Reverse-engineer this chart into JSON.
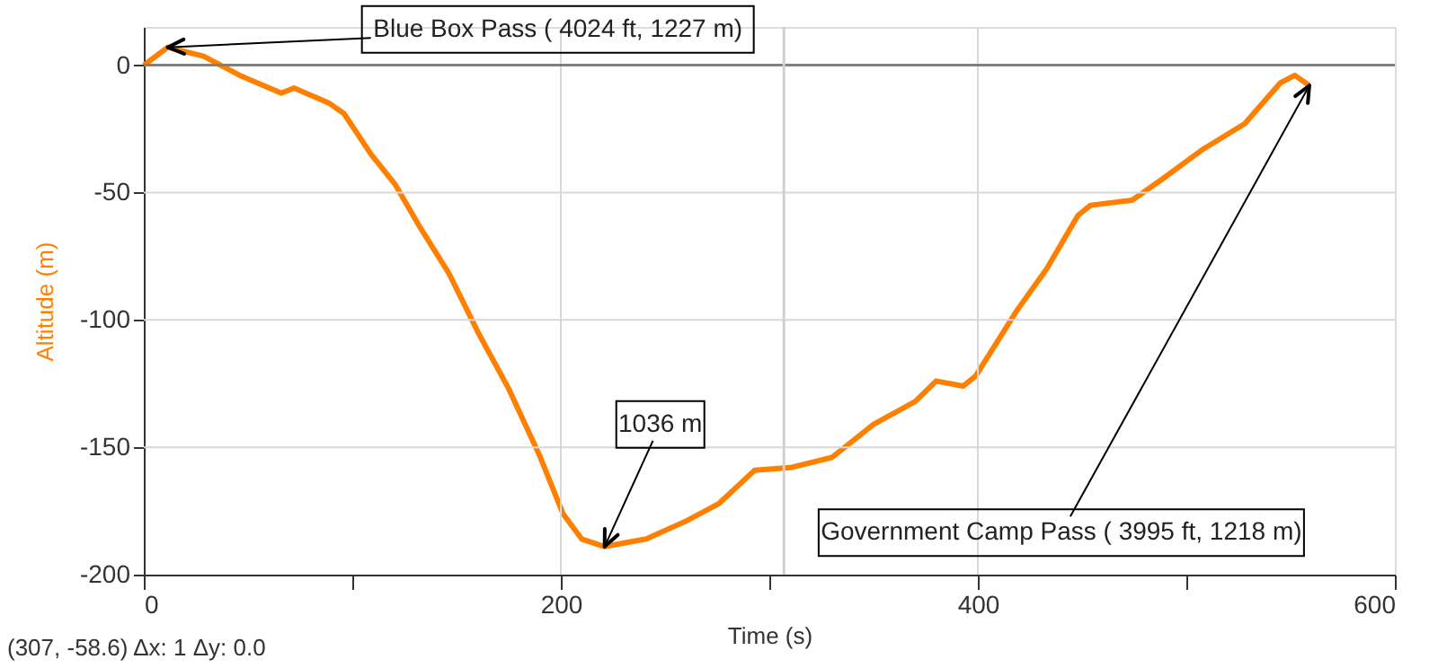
{
  "chart_data": {
    "type": "line",
    "xlabel": "Time (s)",
    "ylabel": "Altitude (m)",
    "x": [
      0,
      11.5,
      28.7,
      46,
      66,
      72,
      89,
      96,
      109,
      120.7,
      132,
      146.5,
      161,
      175,
      189.7,
      201,
      210,
      221,
      241,
      260,
      276,
      293,
      310,
      330,
      350,
      370,
      380,
      393,
      399,
      419,
      433,
      448,
      454,
      474,
      488,
      508,
      528,
      545,
      552,
      559
    ],
    "series": [
      {
        "color": "#ff8000",
        "values": [
          0,
          7,
          3.5,
          -4,
          -11,
          -9,
          -15,
          -19,
          -35,
          -47,
          -63,
          -82,
          -106,
          -127,
          -153,
          -176,
          -186,
          -189,
          -186,
          -179,
          -172,
          -159,
          -158,
          -154,
          -141,
          -132,
          -124,
          -126,
          -122,
          -96,
          -80,
          -59,
          -55,
          -53,
          -45,
          -33,
          -23,
          -7,
          -4,
          -8
        ]
      }
    ],
    "xlim": [
      0,
      600
    ],
    "ylim": [
      -200,
      15
    ],
    "xticks": [
      0,
      {
        "value": 100,
        "label": null
      },
      200,
      {
        "value": 300,
        "label": null
      },
      400,
      {
        "value": 500,
        "label": null
      },
      600
    ],
    "yticks": [
      -200,
      -150,
      -100,
      -50,
      0
    ],
    "grid": true,
    "marker": "none",
    "line_style": "solid",
    "ref_lines": [
      {
        "axis": "y",
        "value": 0,
        "color": "#808080"
      },
      {
        "axis": "x",
        "value": 307,
        "color": "#d0d0d0"
      }
    ],
    "annotations": [
      {
        "text": "Blue Box Pass ( 4024 ft, 1227 m)",
        "x": 11.5,
        "y": 7
      },
      {
        "text": "1036 m",
        "x": 221,
        "y": -189
      },
      {
        "text": "Government Camp Pass ( 3995  ft, 1218 m)",
        "x": 559,
        "y": -8
      },
      "(307, -58.6) Δx: 1 Δy: 0.0"
    ]
  }
}
